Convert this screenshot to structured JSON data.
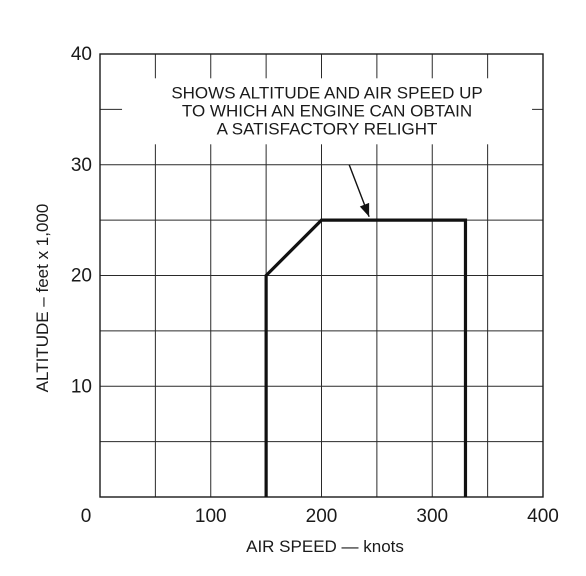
{
  "chart_data": {
    "type": "line",
    "title": "",
    "xlabel": "AIR SPEED — knots",
    "ylabel": "ALTITUDE – feet x 1,000",
    "xlim": [
      0,
      400
    ],
    "ylim": [
      0,
      40
    ],
    "grid": true,
    "x_ticks": [
      {
        "value": 0,
        "label": "0"
      },
      {
        "value": 100,
        "label": "100"
      },
      {
        "value": 200,
        "label": "200"
      },
      {
        "value": 300,
        "label": "300"
      },
      {
        "value": 400,
        "label": "400"
      }
    ],
    "y_ticks": [
      {
        "value": 10,
        "label": "10"
      },
      {
        "value": 20,
        "label": "20"
      },
      {
        "value": 30,
        "label": "30"
      },
      {
        "value": 40,
        "label": "40"
      }
    ],
    "grid_x_step": 50,
    "grid_y_step": 5,
    "series": [
      {
        "points": [
          {
            "x": 150,
            "y": 0
          },
          {
            "x": 150,
            "y": 20
          },
          {
            "x": 200,
            "y": 25
          },
          {
            "x": 330,
            "y": 25
          },
          {
            "x": 330,
            "y": 0
          }
        ]
      }
    ],
    "annotation": {
      "lines": [
        "SHOWS ALTITUDE AND AIR SPEED UP",
        "TO WHICH  AN ENGINE CAN OBTAIN",
        "A SATISFACTORY RELIGHT"
      ],
      "text_anchor": {
        "x": 205,
        "y": 36
      },
      "arrow_from": {
        "x": 225,
        "y": 30
      },
      "arrow_to": {
        "x": 243,
        "y": 25.3
      }
    }
  }
}
